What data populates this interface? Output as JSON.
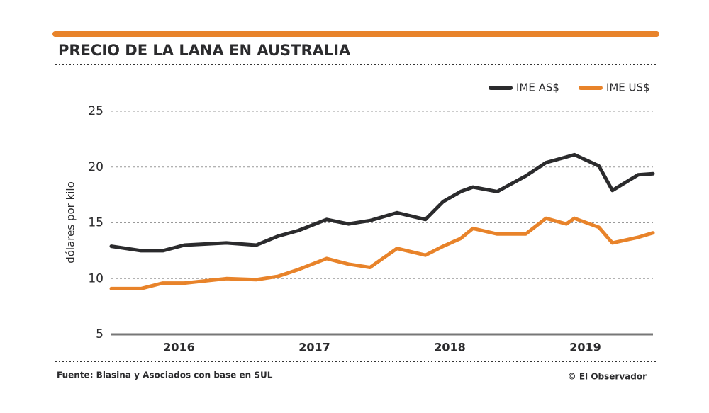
{
  "chart_data": {
    "type": "line",
    "title": "PRECIO DE LA LANA EN AUSTRALIA",
    "y_label": "dólares por kilo",
    "source": "Fuente: Blasina y Asociados con base en SUL",
    "credit": "© El Observador",
    "x": [
      2016.0,
      2016.22,
      2016.38,
      2016.54,
      2016.85,
      2017.07,
      2017.23,
      2017.38,
      2017.59,
      2017.75,
      2017.91,
      2018.11,
      2018.32,
      2018.45,
      2018.58,
      2018.67,
      2018.85,
      2019.06,
      2019.21,
      2019.36,
      2019.42,
      2019.6,
      2019.7,
      2019.89,
      2020.0
    ],
    "series": [
      {
        "name": "IME AS$",
        "color": "#2b2b2d",
        "values": [
          12.9,
          12.5,
          12.5,
          13.0,
          13.2,
          13.0,
          13.8,
          14.3,
          15.3,
          14.9,
          15.2,
          15.9,
          15.3,
          16.9,
          17.8,
          18.2,
          17.8,
          19.2,
          20.4,
          20.9,
          21.1,
          20.1,
          17.9,
          19.3,
          19.4
        ]
      },
      {
        "name": "IME US$",
        "color": "#e8832a",
        "values": [
          9.1,
          9.1,
          9.6,
          9.6,
          10.0,
          9.9,
          10.2,
          10.8,
          11.8,
          11.3,
          11.0,
          12.7,
          12.1,
          12.9,
          13.6,
          14.5,
          14.0,
          14.0,
          15.4,
          14.9,
          15.4,
          14.6,
          13.2,
          13.7,
          14.1
        ]
      }
    ],
    "xlim": [
      2016,
      2020
    ],
    "xticks": [
      {
        "value": 2016.5,
        "label": "2016"
      },
      {
        "value": 2017.5,
        "label": "2017"
      },
      {
        "value": 2018.5,
        "label": "2018"
      },
      {
        "value": 2019.5,
        "label": "2019"
      }
    ],
    "ylim": [
      5,
      25
    ],
    "yticks": [
      5,
      10,
      15,
      20,
      25
    ],
    "grid": true,
    "legend": "top-right"
  }
}
